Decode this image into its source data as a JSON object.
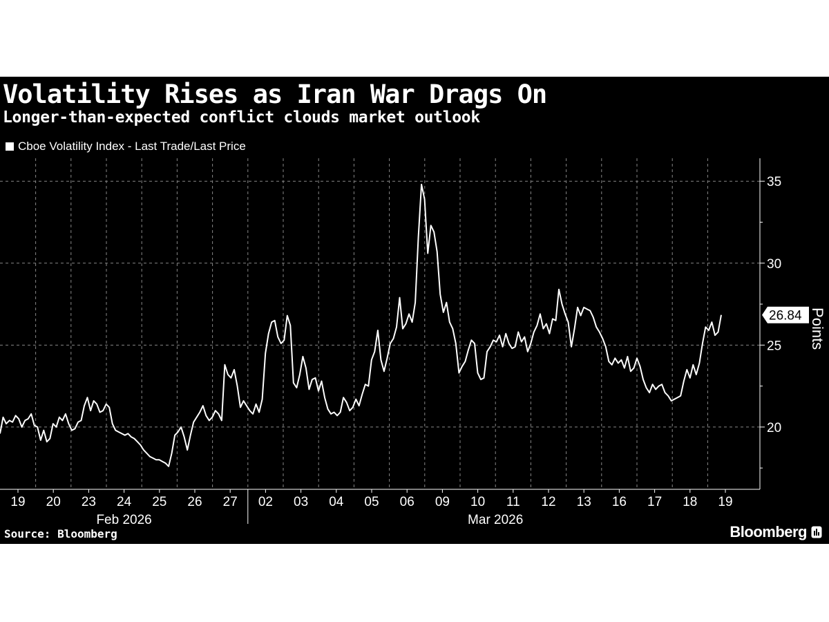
{
  "header": {
    "title": "Volatility Rises as Iran War Drags On",
    "subtitle": "Longer-than-expected conflict clouds market outlook",
    "legend_label": "Cboe Volatility Index - Last Trade/Last Price"
  },
  "footer": {
    "source": "Source: Bloomberg",
    "brand": "Bloomberg"
  },
  "colors": {
    "background": "#000000",
    "line": "#ffffff",
    "grid": "#888888"
  },
  "chart_data": {
    "type": "line",
    "title": "Volatility Rises as Iran War Drags On",
    "subtitle": "Longer-than-expected conflict clouds market outlook",
    "xlabel": "",
    "ylabel": "Points",
    "ylim": [
      16.2,
      36.4
    ],
    "yticks": [
      20,
      25,
      30,
      35
    ],
    "grid": true,
    "legend_placement": "top-left",
    "series_name": "Cboe Volatility Index - Last Trade/Last Price",
    "last_value": 26.84,
    "last_value_label": "26.84",
    "day_labels": [
      "19",
      "20",
      "23",
      "24",
      "25",
      "26",
      "27",
      "02",
      "03",
      "04",
      "05",
      "06",
      "09",
      "10",
      "11",
      "12",
      "13",
      "16",
      "17",
      "18",
      "19"
    ],
    "month_labels": [
      {
        "label": "Feb 2026",
        "start_day": 0,
        "end_day": 6
      },
      {
        "label": "Mar 2026",
        "start_day": 7,
        "end_day": 20
      }
    ],
    "values": [
      19.6,
      20.6,
      20.2,
      20.4,
      20.3,
      20.7,
      20.5,
      20.0,
      20.4,
      20.5,
      20.8,
      20.1,
      20.0,
      19.2,
      19.8,
      19.1,
      19.3,
      20.2,
      20.0,
      20.6,
      20.4,
      20.8,
      20.2,
      19.8,
      19.9,
      20.3,
      20.4,
      21.3,
      21.8,
      21.0,
      21.6,
      21.4,
      20.9,
      21.0,
      21.4,
      21.2,
      20.2,
      19.8,
      19.7,
      19.6,
      19.5,
      19.6,
      19.4,
      19.3,
      19.1,
      18.9,
      18.6,
      18.4,
      18.2,
      18.1,
      18.0,
      18.0,
      17.9,
      17.8,
      17.6,
      18.4,
      19.5,
      19.7,
      20.0,
      19.4,
      18.6,
      19.5,
      20.3,
      20.6,
      20.9,
      21.3,
      20.7,
      20.4,
      20.6,
      21.0,
      20.8,
      20.4,
      23.8,
      23.2,
      23.0,
      23.5,
      22.5,
      21.2,
      21.6,
      21.3,
      21.0,
      20.8,
      21.4,
      20.9,
      21.7,
      24.5,
      25.7,
      26.4,
      26.5,
      25.5,
      25.1,
      25.3,
      26.8,
      26.2,
      22.7,
      22.4,
      23.2,
      24.3,
      23.6,
      22.3,
      22.9,
      23.0,
      22.2,
      22.8,
      21.8,
      21.1,
      20.8,
      20.9,
      20.7,
      20.9,
      21.8,
      21.5,
      21.0,
      21.2,
      21.7,
      21.3,
      22.0,
      22.6,
      22.5,
      24.1,
      24.6,
      25.9,
      24.1,
      23.4,
      24.2,
      25.1,
      25.4,
      26.1,
      27.9,
      26.0,
      26.3,
      26.9,
      26.4,
      27.6,
      31.6,
      34.8,
      33.9,
      30.6,
      32.3,
      31.9,
      30.7,
      28.1,
      27.0,
      27.6,
      26.4,
      26.0,
      25.1,
      23.3,
      23.7,
      24.0,
      24.7,
      25.3,
      25.1,
      23.3,
      22.9,
      23.0,
      24.6,
      24.9,
      25.3,
      25.2,
      25.6,
      24.9,
      25.7,
      25.1,
      24.8,
      24.9,
      25.8,
      25.2,
      25.5,
      24.6,
      25.1,
      25.8,
      26.2,
      26.9,
      26.0,
      26.3,
      25.7,
      26.6,
      26.5,
      28.4,
      27.5,
      26.9,
      26.4,
      24.9,
      26.0,
      27.3,
      26.8,
      27.3,
      27.2,
      27.1,
      26.7,
      26.1,
      25.8,
      25.4,
      24.9,
      24.0,
      23.8,
      24.2,
      23.9,
      24.1,
      23.6,
      24.3,
      23.4,
      23.6,
      24.2,
      23.7,
      22.9,
      22.4,
      22.1,
      22.6,
      22.3,
      22.5,
      22.6,
      22.1,
      21.9,
      21.6,
      21.7,
      21.8,
      21.9,
      22.8,
      23.5,
      23.0,
      23.8,
      23.2,
      23.9,
      25.1,
      26.1,
      25.9,
      26.4,
      25.6,
      25.8,
      26.84
    ]
  }
}
